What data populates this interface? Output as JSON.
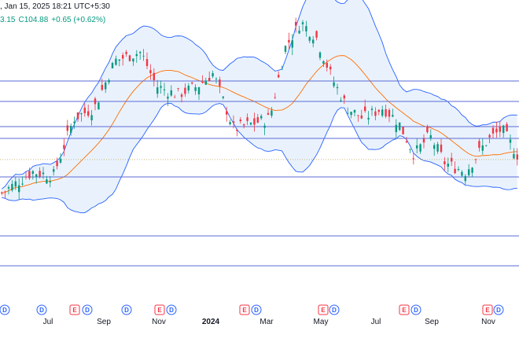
{
  "header": {
    "datetime": ", Jan 15, 2025 18:21 UTC+5:30"
  },
  "ohlc": {
    "fragment": "3.15",
    "close": "C104.88",
    "change": "+0.65 (+0.62%)"
  },
  "colors": {
    "up": "#089981",
    "down": "#f23645",
    "band_line": "#2962ff",
    "band_fill": "#e3effb",
    "basis": "#ff6d00",
    "hline": "#5b6bd6",
    "dividend": "#2962ff",
    "earnings": "#f23645"
  },
  "chart_data": {
    "type": "candlestick",
    "title": "",
    "x_tick_labels": [
      "Jul",
      "Sep",
      "Nov",
      "2024",
      "Mar",
      "May",
      "Jul",
      "Sep",
      "Nov"
    ],
    "indicators": [
      "Bollinger Bands"
    ],
    "horizontal_levels_count": 7,
    "trend": [
      {
        "t": 0.0,
        "p": 0.2
      },
      {
        "t": 0.06,
        "p": 0.3
      },
      {
        "t": 0.1,
        "p": 0.28
      },
      {
        "t": 0.14,
        "p": 0.55
      },
      {
        "t": 0.18,
        "p": 0.6
      },
      {
        "t": 0.22,
        "p": 0.82
      },
      {
        "t": 0.27,
        "p": 0.86
      },
      {
        "t": 0.3,
        "p": 0.7
      },
      {
        "t": 0.34,
        "p": 0.66
      },
      {
        "t": 0.38,
        "p": 0.7
      },
      {
        "t": 0.41,
        "p": 0.76
      },
      {
        "t": 0.45,
        "p": 0.5
      },
      {
        "t": 0.48,
        "p": 0.52
      },
      {
        "t": 0.52,
        "p": 0.55
      },
      {
        "t": 0.55,
        "p": 0.88
      },
      {
        "t": 0.58,
        "p": 1.0
      },
      {
        "t": 0.61,
        "p": 0.93
      },
      {
        "t": 0.64,
        "p": 0.74
      },
      {
        "t": 0.67,
        "p": 0.6
      },
      {
        "t": 0.7,
        "p": 0.55
      },
      {
        "t": 0.74,
        "p": 0.6
      },
      {
        "t": 0.77,
        "p": 0.53
      },
      {
        "t": 0.8,
        "p": 0.38
      },
      {
        "t": 0.83,
        "p": 0.47
      },
      {
        "t": 0.86,
        "p": 0.34
      },
      {
        "t": 0.9,
        "p": 0.3
      },
      {
        "t": 0.94,
        "p": 0.44
      },
      {
        "t": 0.97,
        "p": 0.5
      },
      {
        "t": 1.0,
        "p": 0.38
      }
    ],
    "events": [
      {
        "type": "D"
      },
      {
        "type": "D"
      },
      {
        "type": "E"
      },
      {
        "type": "D"
      },
      {
        "type": "D"
      },
      {
        "type": "E"
      },
      {
        "type": "D"
      },
      {
        "type": "E"
      },
      {
        "type": "D"
      },
      {
        "type": "E"
      },
      {
        "type": "D"
      },
      {
        "type": "E"
      },
      {
        "type": "D"
      },
      {
        "type": "E"
      },
      {
        "type": "D"
      }
    ]
  }
}
